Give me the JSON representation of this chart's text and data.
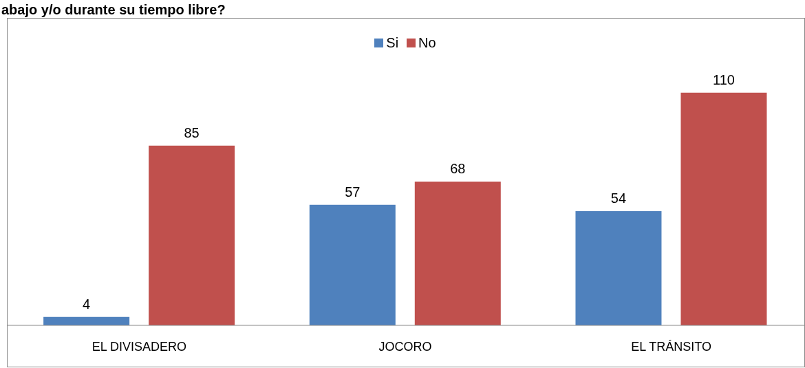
{
  "chart_data": {
    "type": "bar",
    "title": "abajo y/o durante su tiempo libre?",
    "categories": [
      "EL DIVISADERO",
      "JOCORO",
      "EL TRÁNSITO"
    ],
    "series": [
      {
        "name": "Si",
        "color": "#4f81bd",
        "values": [
          4,
          57,
          54
        ]
      },
      {
        "name": "No",
        "color": "#c0504d",
        "values": [
          85,
          68,
          110
        ]
      }
    ],
    "data_labels": true,
    "legend": "top",
    "grid": false,
    "tick_labels": "x"
  }
}
